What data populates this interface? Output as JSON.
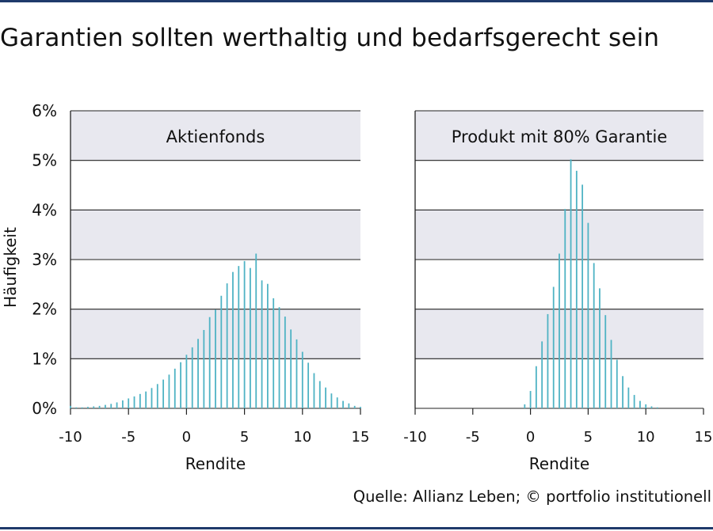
{
  "title": "Garantien sollten werthaltig und bedarfsgerecht sein",
  "source": "Quelle: Allianz Leben; © portfolio institutionell",
  "colors": {
    "rule": "#1f3a6b",
    "bar": "#4fb3c4",
    "band": "#e8e8ef",
    "grid": "#222222"
  },
  "chart_data": [
    {
      "type": "bar",
      "title": "Aktienfonds",
      "xlabel": "Rendite",
      "ylabel": "Häufigkeit",
      "xlim": [
        -10,
        15
      ],
      "ylim": [
        0,
        6
      ],
      "x_ticks": [
        "-10",
        "-5",
        "0",
        "5",
        "10",
        "15"
      ],
      "y_ticks": [
        "0%",
        "1%",
        "2%",
        "3%",
        "4%",
        "5%",
        "6%"
      ],
      "x": [
        -10,
        -9.5,
        -9,
        -8.5,
        -8,
        -7.5,
        -7,
        -6.5,
        -6,
        -5.5,
        -5,
        -4.5,
        -4,
        -3.5,
        -3,
        -2.5,
        -2,
        -1.5,
        -1,
        -0.5,
        0,
        0.5,
        1,
        1.5,
        2,
        2.5,
        3,
        3.5,
        4,
        4.5,
        5,
        5.5,
        6,
        6.5,
        7,
        7.5,
        8,
        8.5,
        9,
        9.5,
        10,
        10.5,
        11,
        11.5,
        12,
        12.5,
        13,
        13.5,
        14,
        14.5,
        15
      ],
      "values": [
        0.05,
        0.02,
        0.02,
        0.03,
        0.04,
        0.05,
        0.07,
        0.09,
        0.12,
        0.16,
        0.2,
        0.24,
        0.29,
        0.34,
        0.41,
        0.49,
        0.58,
        0.68,
        0.8,
        0.93,
        1.08,
        1.23,
        1.4,
        1.58,
        1.84,
        1.99,
        2.27,
        2.52,
        2.75,
        2.87,
        2.97,
        2.83,
        3.12,
        2.58,
        2.51,
        2.22,
        2.04,
        1.85,
        1.59,
        1.39,
        1.14,
        0.92,
        0.71,
        0.55,
        0.42,
        0.3,
        0.22,
        0.15,
        0.1,
        0.05,
        0.03
      ]
    },
    {
      "type": "bar",
      "title": "Produkt mit 80% Garantie",
      "xlabel": "Rendite",
      "xlim": [
        -10,
        15
      ],
      "ylim": [
        0,
        6
      ],
      "x_ticks": [
        "-10",
        "-5",
        "0",
        "5",
        "10",
        "15"
      ],
      "x": [
        -0.5,
        0,
        0.5,
        1,
        1.5,
        2,
        2.5,
        3,
        3.5,
        4,
        4.5,
        5,
        5.5,
        6,
        6.5,
        7,
        7.5,
        8,
        8.5,
        9,
        9.5,
        10,
        10.5,
        11
      ],
      "values": [
        0.08,
        0.35,
        0.85,
        1.35,
        1.9,
        2.45,
        3.12,
        4.02,
        5.02,
        4.79,
        4.51,
        3.74,
        2.93,
        2.42,
        1.88,
        1.38,
        0.98,
        0.65,
        0.42,
        0.27,
        0.15,
        0.08,
        0.04,
        0.02
      ]
    }
  ]
}
